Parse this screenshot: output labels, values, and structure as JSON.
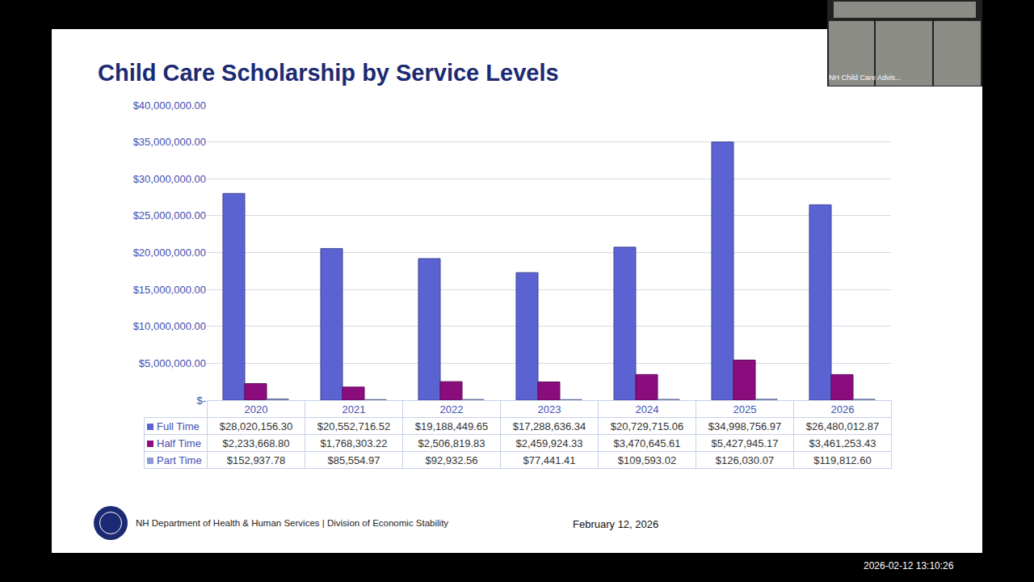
{
  "chart_data": {
    "type": "bar",
    "title": "Child Care Scholarship by Service Levels",
    "categories": [
      "2020",
      "2021",
      "2022",
      "2023",
      "2024",
      "2025",
      "2026"
    ],
    "series": [
      {
        "name": "Full Time",
        "color": "#5b63d3",
        "values": [
          28020156.3,
          20552716.52,
          19188449.65,
          17288636.34,
          20729715.06,
          34998756.97,
          26480012.87
        ],
        "value_labels": [
          "$28,020,156.30",
          "$20,552,716.52",
          "$19,188,449.65",
          "$17,288,636.34",
          "$20,729,715.06",
          "$34,998,756.97",
          "$26,480,012.87"
        ]
      },
      {
        "name": "Half Time",
        "color": "#8b0d7d",
        "values": [
          2233668.8,
          1768303.22,
          2506819.83,
          2459924.33,
          3470645.61,
          5427945.17,
          3461253.43
        ],
        "value_labels": [
          "$2,233,668.80",
          "$1,768,303.22",
          "$2,506,819.83",
          "$2,459,924.33",
          "$3,470,645.61",
          "$5,427,945.17",
          "$3,461,253.43"
        ]
      },
      {
        "name": "Part Time",
        "color": "#8e9ad6",
        "values": [
          152937.78,
          85554.97,
          92932.56,
          77441.41,
          109593.02,
          126030.07,
          119812.6
        ],
        "value_labels": [
          "$152,937.78",
          "$85,554.97",
          "$92,932.56",
          "$77,441.41",
          "$109,593.02",
          "$126,030.07",
          "$119,812.60"
        ]
      }
    ],
    "ylim": [
      0,
      40000000
    ],
    "yticks": [
      {
        "value": 0,
        "label": "$-"
      },
      {
        "value": 5000000,
        "label": "$5,000,000.00"
      },
      {
        "value": 10000000,
        "label": "$10,000,000.00"
      },
      {
        "value": 15000000,
        "label": "$15,000,000.00"
      },
      {
        "value": 20000000,
        "label": "$20,000,000.00"
      },
      {
        "value": 25000000,
        "label": "$25,000,000.00"
      },
      {
        "value": 30000000,
        "label": "$30,000,000.00"
      },
      {
        "value": 35000000,
        "label": "$35,000,000.00"
      },
      {
        "value": 40000000,
        "label": "$40,000,000.00"
      }
    ],
    "grid": true,
    "tick_labels": "y"
  },
  "footer": {
    "organization": "NH Department of Health & Human Services | Division of Economic Stability",
    "date": "February 12, 2026"
  },
  "video": {
    "label": "NH Child Care Advis...",
    "timestamp": "2026-02-12 13:10:26"
  }
}
